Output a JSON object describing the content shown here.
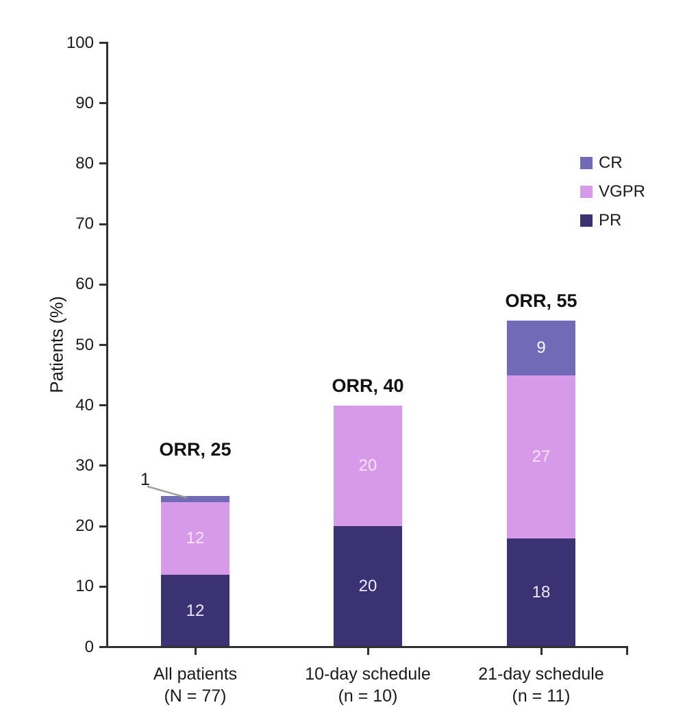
{
  "chart_data": {
    "type": "bar",
    "stacked": true,
    "title": "",
    "ylabel": "Patients (%)",
    "xlabel": "",
    "ylim": [
      0,
      100
    ],
    "ytick_step": 10,
    "grid": false,
    "legend_position": "top-right",
    "legend_items": [
      "CR",
      "VGPR",
      "PR"
    ],
    "categories": [
      "All patients",
      "10-day schedule",
      "21-day schedule"
    ],
    "category_sublabels": [
      "(N = 77)",
      "(n = 10)",
      "(n = 11)"
    ],
    "series": [
      {
        "name": "PR",
        "color": "#3a3272",
        "label_color": "#efe9f6",
        "values": [
          12,
          20,
          18
        ]
      },
      {
        "name": "VGPR",
        "color": "#d69ae8",
        "label_color": "#f9e4fb",
        "values": [
          12,
          20,
          27
        ]
      },
      {
        "name": "CR",
        "color": "#716ab6",
        "label_color": "#ffffff",
        "values": [
          1,
          0,
          9
        ]
      }
    ],
    "totals_labels": [
      "ORR, 25",
      "ORR, 40",
      "ORR, 55"
    ],
    "annotations": [
      {
        "text": "1",
        "series": "CR",
        "category_index": 0
      }
    ],
    "colors": {
      "axis": "#303030",
      "text": "#1a1a1a",
      "leader_line": "#9e9e9e",
      "background": "#ffffff"
    }
  }
}
